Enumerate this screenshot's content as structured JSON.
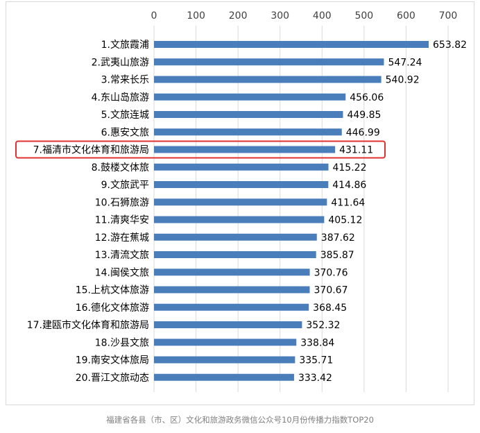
{
  "caption": "福建省各县（市、区）文化和旅游政务微信公众号10月份传播力指数TOP20",
  "colors": {
    "bar": "#4a7ebb",
    "grid": "#d9d9d9",
    "highlight": "#e03030"
  },
  "chart_data": {
    "type": "bar",
    "orientation": "horizontal",
    "categories": [
      "1.文旅霞浦",
      "2.武夷山旅游",
      "3.常来长乐",
      "4.东山岛旅游",
      "5.文旅连城",
      "6.惠安文旅",
      "7.福清市文化体育和旅游局",
      "8.鼓楼文体旅",
      "9.文旅武平",
      "10.石狮旅游",
      "11.清爽华安",
      "12.游在蕉城",
      "13.清流文旅",
      "14.闽侯文旅",
      "15.上杭文体旅游",
      "16.德化文体旅游",
      "17.建瓯市文化体育和旅游局",
      "18.沙县文旅",
      "19.南安文体旅局",
      "20.晋江文旅动态"
    ],
    "values": [
      653.82,
      547.24,
      540.92,
      456.06,
      449.85,
      446.99,
      431.11,
      415.22,
      414.86,
      411.64,
      405.12,
      387.62,
      385.87,
      370.76,
      370.67,
      368.45,
      352.32,
      338.84,
      335.71,
      333.42
    ],
    "value_labels": [
      "653.82",
      "547.24",
      "540.92",
      "456.06",
      "449.85",
      "446.99",
      "431.11",
      "415.22",
      "414.86",
      "411.64",
      "405.12",
      "387.62",
      "385.87",
      "370.76",
      "370.67",
      "368.45",
      "352.32",
      "338.84",
      "335.71",
      "333.42"
    ],
    "xlim": [
      0,
      700
    ],
    "ticks": [
      0,
      100,
      200,
      300,
      400,
      500,
      600,
      700
    ],
    "x_axis_position": "top",
    "grid": true,
    "highlighted_category": "7.福清市文化体育和旅游局"
  }
}
